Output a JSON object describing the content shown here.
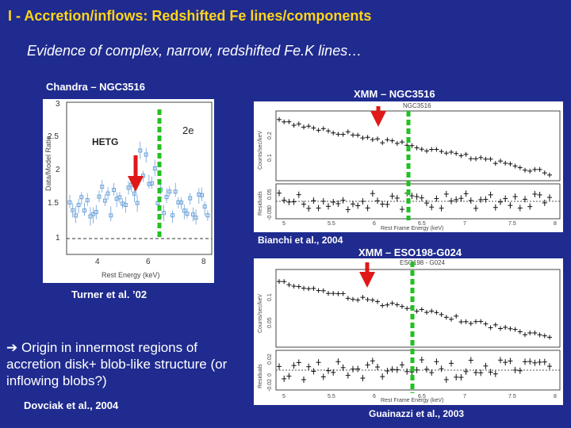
{
  "slide": {
    "title": "I - Accretion/inflows: Redshifted Fe lines/components",
    "subtitle": "Evidence of complex, narrow, redshifted Fe.K lines…",
    "chandra_label": "Chandra – NGC3516",
    "xmm1_label": "XMM – NGC3516",
    "xmm2_label": "XMM – ESO198-G024",
    "bianchi_ref": "Bianchi et al., 2004",
    "turner_ref": "Turner et al. ’02",
    "origin_arrow": "➔",
    "origin_text": "Origin in innermost regions of accretion disk+ blob-like structure (or inflowing blobs?)",
    "dovciak_ref": "Dovciak et al., 2004",
    "guainazzi_ref": "Guainazzi et al., 2003"
  },
  "plot_chandra": {
    "ylabel": "Data/Model Ratio",
    "xlabel": "Rest Energy (keV)",
    "instrument": "HETG",
    "panel_id": "2e",
    "y_ticks": [
      "3",
      "2.5",
      "2",
      "1.5",
      "1"
    ],
    "x_ticks": [
      "4",
      "6",
      "8"
    ]
  },
  "plot_xmm1": {
    "header": "NGC3516",
    "ylabel_top": "Counts/sec/keV",
    "ylabel_bottom": "Residuals",
    "xlabel": "Rest Frame Energy (keV)",
    "x_ticks": [
      "5",
      "5.5",
      "6",
      "6.5",
      "7",
      "7.5",
      "8"
    ],
    "y_ticks_top": [
      "0.2",
      "0.1"
    ],
    "y_ticks_bottom": [
      "0.05",
      "0",
      "-0.05"
    ]
  },
  "plot_xmm2": {
    "header": "ESO198 - G024",
    "ylabel_top": "Counts/sec/keV",
    "ylabel_bottom": "Residuals",
    "xlabel": "Rest Frame Energy (keV)",
    "x_ticks": [
      "5",
      "5.5",
      "6",
      "6.5",
      "7",
      "7.5",
      "8"
    ],
    "y_ticks_top": [
      "0.1",
      "0.05"
    ],
    "y_ticks_bottom": [
      "0.02",
      "0",
      "-0.02"
    ]
  },
  "colors": {
    "background": "#1f2b8f",
    "title": "#ffd51a",
    "arrow": "#e01818",
    "line_marker": "#22c022"
  }
}
